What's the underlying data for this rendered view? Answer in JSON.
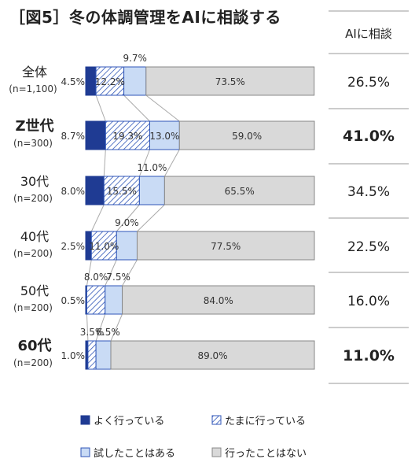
{
  "title": "［図5］冬の体調管理をAIに相談する",
  "right_header": "AIに相談",
  "legend": [
    {
      "label": "よく行っている",
      "color": "#1f3b93",
      "pattern": "solid"
    },
    {
      "label": "たまに行っている",
      "color": "#2f56b8",
      "pattern": "hatch"
    },
    {
      "label": "試したことはある",
      "color": "#c9dbf5",
      "pattern": "solid"
    },
    {
      "label": "行ったことはない",
      "color": "#d9d9d9",
      "pattern": "solid"
    }
  ],
  "chart_data": {
    "type": "bar",
    "orientation": "horizontal",
    "stacked": true,
    "xlim": [
      0,
      100
    ],
    "categories": [
      {
        "name": "全体",
        "sub": "(n=1,100)",
        "bold": false
      },
      {
        "name": "Z世代",
        "sub": "(n=300)",
        "bold": true
      },
      {
        "name": "30代",
        "sub": "(n=200)",
        "bold": false
      },
      {
        "name": "40代",
        "sub": "(n=200)",
        "bold": false
      },
      {
        "name": "50代",
        "sub": "(n=200)",
        "bold": false
      },
      {
        "name": "60代",
        "sub": "(n=200)",
        "bold": true
      }
    ],
    "series": [
      {
        "name": "よく行っている",
        "values": [
          4.5,
          8.7,
          8.0,
          2.5,
          0.5,
          1.0
        ]
      },
      {
        "name": "たまに行っている",
        "values": [
          12.2,
          19.3,
          15.5,
          11.0,
          8.0,
          3.5
        ]
      },
      {
        "name": "試したことはある",
        "values": [
          9.7,
          13.0,
          11.0,
          9.0,
          7.5,
          6.5
        ]
      },
      {
        "name": "行ったことはない",
        "values": [
          73.5,
          59.0,
          65.5,
          77.5,
          84.0,
          89.0
        ]
      }
    ],
    "labels": [
      [
        "4.5%",
        "12.2%",
        "9.7%",
        "73.5%"
      ],
      [
        "8.7%",
        "19.3%",
        "13.0%",
        "59.0%"
      ],
      [
        "8.0%",
        "15.5%",
        "11.0%",
        "65.5%"
      ],
      [
        "2.5%",
        "11.0%",
        "9.0%",
        "77.5%"
      ],
      [
        "0.5%",
        "8.0%",
        "7.5%",
        "84.0%"
      ],
      [
        "1.0%",
        "3.5%",
        "6.5%",
        "89.0%"
      ]
    ],
    "ai_consult": [
      "26.5%",
      "41.0%",
      "34.5%",
      "22.5%",
      "16.0%",
      "11.0%"
    ]
  }
}
